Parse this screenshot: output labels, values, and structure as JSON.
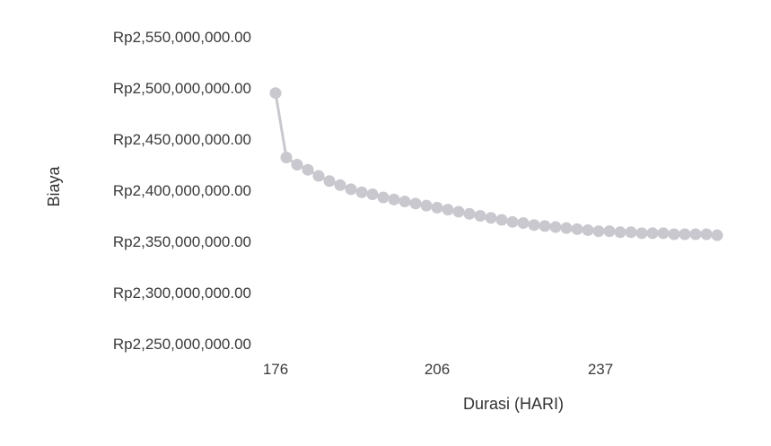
{
  "chart_data": {
    "type": "line",
    "title": "",
    "xlabel": "Durasi (HARI)",
    "ylabel": "Biaya",
    "x_ticks": [
      "176",
      "206",
      "237"
    ],
    "y_ticks": [
      "Rp2,550,000,000.00",
      "Rp2,500,000,000.00",
      "Rp2,450,000,000.00",
      "Rp2,400,000,000.00",
      "Rp2,350,000,000.00",
      "Rp2,300,000,000.00",
      "Rp2,250,000,000.00"
    ],
    "ylim": [
      2250000000,
      2550000000
    ],
    "grid": false,
    "marker": "circle",
    "colors": {
      "series": "#c8c8ce"
    },
    "series": [
      {
        "x": [
          176,
          178,
          180,
          182,
          184,
          186,
          188,
          190,
          192,
          194,
          196,
          198,
          200,
          202,
          204,
          206,
          208,
          210,
          212,
          214,
          216,
          218,
          220,
          222,
          224,
          226,
          228,
          230,
          232,
          234,
          236,
          238,
          240,
          242,
          244,
          246,
          248,
          250,
          252,
          254,
          256,
          258
        ],
        "y": [
          2495000000,
          2432000000,
          2425000000,
          2420000000,
          2414000000,
          2409000000,
          2405000000,
          2401000000,
          2398000000,
          2396000000,
          2393000000,
          2391000000,
          2389000000,
          2387000000,
          2385000000,
          2383000000,
          2381000000,
          2379000000,
          2377000000,
          2375000000,
          2373000000,
          2371000000,
          2369000000,
          2368000000,
          2366000000,
          2365000000,
          2364000000,
          2363000000,
          2362000000,
          2361000000,
          2360000000,
          2360000000,
          2359000000,
          2359000000,
          2358000000,
          2358000000,
          2358000000,
          2357000000,
          2357000000,
          2357000000,
          2357000000,
          2356000000
        ]
      }
    ]
  }
}
